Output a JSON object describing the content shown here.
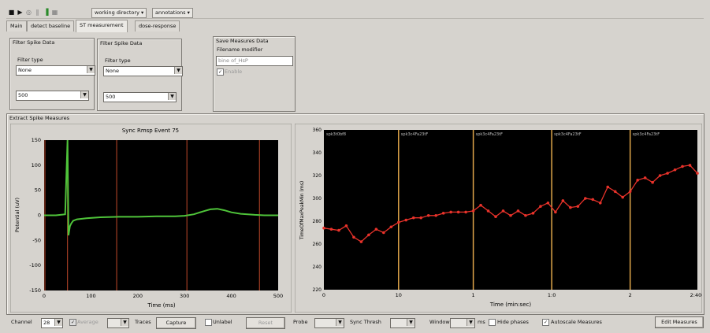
{
  "toolbar": {
    "working_directory": "working directory",
    "annotations": "annotations"
  },
  "tabs": [
    {
      "label": "Main"
    },
    {
      "label": "detect baseline"
    },
    {
      "label": "ST measurement"
    },
    {
      "label": "dose-response"
    }
  ],
  "filter1": {
    "title": "Filter Spike Data",
    "filter_type_label": "Filter type",
    "filter_type_value": "None",
    "second_value": "500"
  },
  "filter2": {
    "title": "Filter Spike Data",
    "filter_type_label": "Filter type",
    "filter_type_value": "None",
    "second_value": "500"
  },
  "save": {
    "title": "Save Measures Data",
    "filename_label": "Filename modifier",
    "filename_value": "bine of_HsP",
    "enable_label": "Enable"
  },
  "extract": {
    "title": "Extract Spike Measures"
  },
  "left_chart_labels": {
    "title": "Sync Rmsp Event 75",
    "xlabel": "Time (ms)",
    "ylabel": "Potential (uV)"
  },
  "right_chart_labels": {
    "xlabel": "Time (min:sec)",
    "ylabel": "TimeOfMaxPeakMin (ms)"
  },
  "bottom": {
    "channel_label": "Channel",
    "channel_value": "28",
    "average_label": "Average",
    "traces_label": "Traces",
    "capture_label": "Capture",
    "unlabel_label": "Unlabel",
    "reset_label": "Reset",
    "probe_label": "Probe",
    "sync_thresh_label": "Sync Thresh",
    "window_label": "Window",
    "ms_label": "ms",
    "hide_phases_label": "Hide phases",
    "autoscale_label": "Autoscale Measures",
    "edit_measures_label": "Edit Measures"
  },
  "chart_data": [
    {
      "type": "line",
      "title": "Sync Rmsp Event 75",
      "xlabel": "Time (ms)",
      "ylabel": "Potential (uV)",
      "xlim": [
        0,
        500
      ],
      "ylim": [
        -150,
        150
      ],
      "x_ticks": [
        "0",
        "100",
        "200",
        "300",
        "400",
        "500"
      ],
      "y_ticks": [
        "150",
        "100",
        "50",
        "0",
        "-50",
        "-100",
        "-150"
      ],
      "vertical_markers": [
        0,
        50,
        155,
        305,
        460
      ],
      "series": [
        {
          "color": "#4fc43a",
          "x": [
            0,
            25,
            45,
            50,
            52,
            55,
            58,
            62,
            70,
            90,
            120,
            160,
            200,
            240,
            280,
            300,
            320,
            340,
            355,
            370,
            385,
            400,
            420,
            450,
            470,
            500
          ],
          "y": [
            0,
            0,
            2,
            160,
            -40,
            -22,
            -16,
            -11,
            -8,
            -6,
            -4,
            -3,
            -3,
            -2,
            -2,
            -1,
            2,
            8,
            12,
            13,
            10,
            6,
            3,
            1,
            0,
            0
          ]
        }
      ]
    },
    {
      "type": "line",
      "xlabel": "Time (min:sec)",
      "ylabel": "TimeOfMaxPeakMin (ms)",
      "ylim": [
        220,
        360
      ],
      "x_ticks": [
        "0",
        "10",
        "1",
        "1:0",
        "2",
        "2:400"
      ],
      "y_ticks": [
        "360",
        "340",
        "320",
        "300",
        "280",
        "260",
        "240",
        "220"
      ],
      "segment_labels": [
        "spk3t0bf8",
        "spk3c4Fa23tF",
        "spk3c4Fa23tF",
        "spk3c4Fa23tF",
        "spk3c4Fa23tF"
      ],
      "segment_positions": [
        0,
        20,
        40,
        61,
        82,
        100
      ],
      "series": [
        {
          "color": "#e8322a",
          "x": [
            0,
            2,
            4,
            6,
            8,
            10,
            12,
            14,
            16,
            18,
            20,
            22,
            24,
            26,
            28,
            30,
            32,
            34,
            36,
            38,
            40,
            42,
            44,
            46,
            48,
            50,
            52,
            54,
            56,
            58,
            60,
            62,
            64,
            66,
            68,
            70,
            72,
            74,
            76,
            78,
            80,
            82,
            84,
            86,
            88,
            90,
            92,
            94,
            96,
            98,
            100
          ],
          "y": [
            274,
            273,
            272,
            276,
            266,
            262,
            268,
            273,
            270,
            275,
            279,
            281,
            283,
            283,
            285,
            285,
            287,
            288,
            288,
            288,
            289,
            294,
            289,
            284,
            289,
            285,
            289,
            285,
            287,
            293,
            296,
            288,
            298,
            292,
            293,
            300,
            299,
            296,
            310,
            306,
            301,
            306,
            316,
            318,
            314,
            320,
            322,
            325,
            328,
            329,
            322
          ]
        }
      ]
    }
  ]
}
